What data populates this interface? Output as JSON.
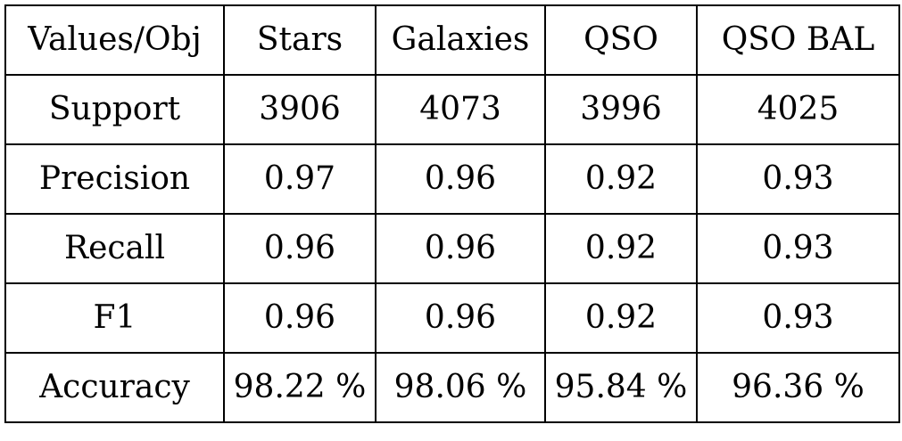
{
  "table": {
    "header": [
      "Values/Obj",
      "Stars",
      "Galaxies",
      "QSO",
      "QSO BAL"
    ],
    "rows": [
      [
        "Support",
        "3906",
        "4073",
        "3996",
        "4025"
      ],
      [
        "Precision",
        "0.97",
        "0.96",
        "0.92",
        "0.93"
      ],
      [
        "Recall",
        "0.96",
        "0.96",
        "0.92",
        "0.93"
      ],
      [
        "F1",
        "0.96",
        "0.96",
        "0.92",
        "0.93"
      ],
      [
        "Accuracy",
        "98.22 %",
        "98.06 %",
        "95.84 %",
        "96.36 %"
      ]
    ]
  }
}
